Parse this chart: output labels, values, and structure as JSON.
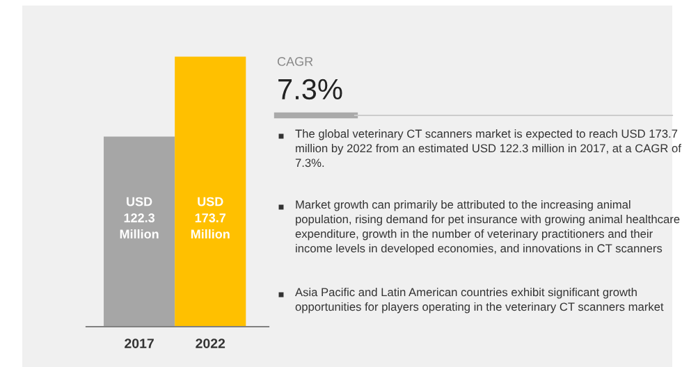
{
  "chart_data": {
    "type": "bar",
    "categories": [
      "2017",
      "2022"
    ],
    "values": [
      122.3,
      173.7
    ],
    "colors": [
      "#a6a6a6",
      "#ffc000"
    ],
    "value_labels": [
      "USD\n122.3\nMillion",
      "USD\n173.7\nMillion"
    ],
    "annotations": [
      "CAGR",
      "7.3%",
      "The global veterinary CT scanners market is expected to reach USD 173.7 million by 2022 from an estimated USD 122.3 million in 2017, at a CAGR of 7.3%.",
      "Market growth can primarily be attributed to the increasing animal population, rising demand for pet insurance with growing animal healthcare expenditure, growth in the number of veterinary practitioners and their income levels in developed economies, and innovations in CT scanners",
      "Asia Pacific and Latin American countries exhibit significant growth opportunities for players operating in the veterinary CT scanners market"
    ],
    "grid": false
  }
}
